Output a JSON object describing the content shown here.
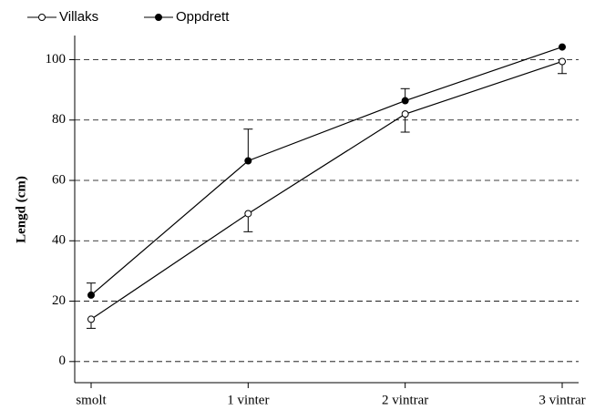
{
  "chart_data": {
    "type": "line",
    "y_label": "Lengd (cm)",
    "categories": [
      "smolt",
      "1 vinter",
      "2 vintrar",
      "3 vintrar"
    ],
    "series": [
      {
        "name": "Villaks",
        "color": "#000000",
        "marker": "open",
        "errors": [
          3,
          6,
          6,
          4
        ],
        "error_direction": "down",
        "values": [
          14,
          49,
          82,
          99.4
        ]
      },
      {
        "name": "Oppdrett",
        "color": "#000000",
        "marker": "filled",
        "errors": [
          4,
          10.5,
          4,
          null
        ],
        "error_direction": "up",
        "values": [
          22,
          66.5,
          86.4,
          104.2
        ]
      }
    ],
    "ylim": [
      -7,
      108
    ],
    "yticks": [
      0,
      20,
      40,
      60,
      80,
      100
    ],
    "grid": true
  }
}
